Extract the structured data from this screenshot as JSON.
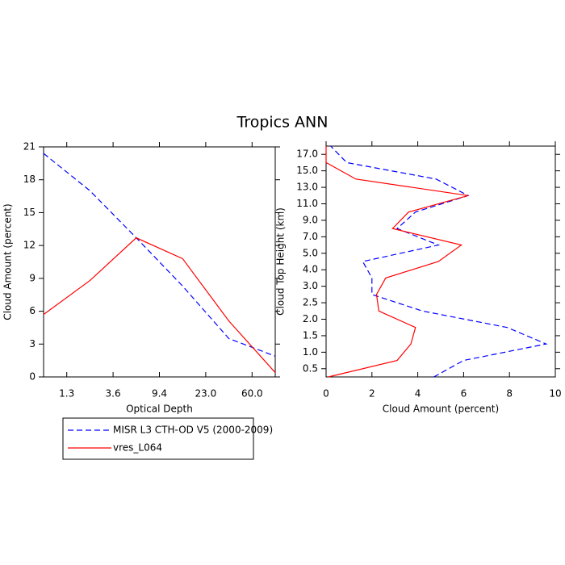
{
  "title": "Tropics ANN",
  "chart_data": [
    {
      "type": "line",
      "orientation": "vertical",
      "xlabel": "Optical Depth",
      "ylabel": "Cloud Amount (percent)",
      "x": [
        0,
        1,
        2,
        3,
        4,
        5
      ],
      "xlim": [
        0,
        5
      ],
      "xticks": [
        {
          "value": 0.5,
          "label": "1.3"
        },
        {
          "value": 1.5,
          "label": "3.6"
        },
        {
          "value": 2.5,
          "label": "9.4"
        },
        {
          "value": 3.5,
          "label": "23.0"
        },
        {
          "value": 4.5,
          "label": "60.0"
        }
      ],
      "ylim": [
        0,
        21
      ],
      "yticks": [
        0,
        3,
        6,
        9,
        12,
        15,
        18,
        21
      ],
      "series": [
        {
          "name": "MISR L3 CTH-OD V5 (2000-2009)",
          "color": "#0000ff",
          "dash": true,
          "values": [
            20.4,
            17.0,
            12.7,
            8.3,
            3.5,
            1.9
          ]
        },
        {
          "name": "vres_L064",
          "color": "#ff0000",
          "dash": false,
          "values": [
            5.7,
            8.8,
            12.7,
            10.8,
            5.1,
            0.4
          ]
        }
      ]
    },
    {
      "type": "line",
      "orientation": "horizontal",
      "xlabel": "Cloud Amount (percent)",
      "ylabel": "Cloud Top Height (km)",
      "y": [
        0,
        1,
        2,
        3,
        4,
        5,
        6,
        7,
        8,
        9,
        10,
        11,
        12,
        13,
        14
      ],
      "ylim": [
        0,
        14
      ],
      "yticks": [
        {
          "value": 0.5,
          "label": "0.5"
        },
        {
          "value": 1.5,
          "label": "1.0"
        },
        {
          "value": 2.5,
          "label": "1.5"
        },
        {
          "value": 3.5,
          "label": "2.0"
        },
        {
          "value": 4.5,
          "label": "2.5"
        },
        {
          "value": 5.5,
          "label": "3.0"
        },
        {
          "value": 6.5,
          "label": "4.0"
        },
        {
          "value": 7.5,
          "label": "5.0"
        },
        {
          "value": 8.5,
          "label": "7.0"
        },
        {
          "value": 9.5,
          "label": "9.0"
        },
        {
          "value": 10.5,
          "label": "11.0"
        },
        {
          "value": 11.5,
          "label": "13.0"
        },
        {
          "value": 12.5,
          "label": "15.0"
        },
        {
          "value": 13.5,
          "label": "17.0"
        }
      ],
      "xlim": [
        0,
        10
      ],
      "xticks": [
        0,
        2,
        4,
        6,
        8,
        10
      ],
      "series": [
        {
          "color": "#0000ff",
          "dash": true,
          "values": [
            4.7,
            6.0,
            9.6,
            7.9,
            4.2,
            2.0,
            2.0,
            1.6,
            4.9,
            3.1,
            3.9,
            6.2,
            4.8,
            0.9,
            0.2
          ]
        },
        {
          "color": "#ff0000",
          "dash": false,
          "values": [
            0.1,
            3.1,
            3.7,
            3.9,
            2.3,
            2.2,
            2.6,
            4.9,
            5.9,
            2.9,
            3.6,
            6.2,
            1.3,
            0.0,
            0.0
          ]
        }
      ]
    }
  ]
}
